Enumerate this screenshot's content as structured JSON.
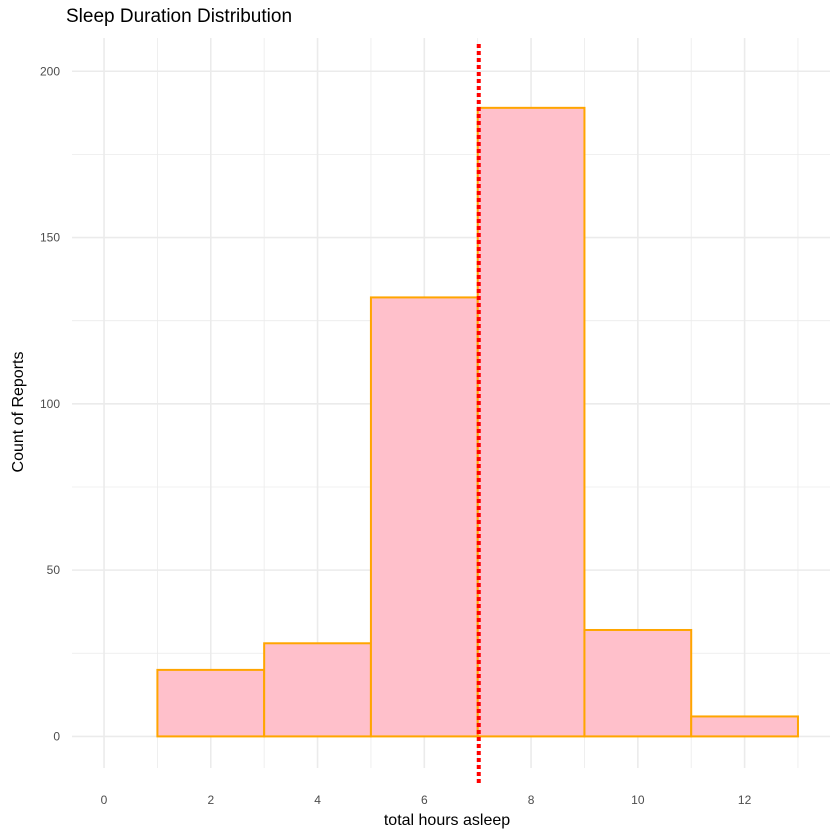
{
  "chart_data": {
    "type": "bar",
    "title": "Sleep Duration Distribution",
    "xlabel": "total hours asleep",
    "ylabel": "Count of Reports",
    "bins": [
      {
        "x_start": 1,
        "x_end": 3,
        "count": 20
      },
      {
        "x_start": 3,
        "x_end": 5,
        "count": 28
      },
      {
        "x_start": 5,
        "x_end": 7,
        "count": 132
      },
      {
        "x_start": 7,
        "x_end": 9,
        "count": 189
      },
      {
        "x_start": 9,
        "x_end": 11,
        "count": 32
      },
      {
        "x_start": 11,
        "x_end": 13,
        "count": 6
      }
    ],
    "reference_line": {
      "x": 7.02,
      "style": "dotted",
      "color": "#ff0000"
    },
    "xlim": [
      -0.6,
      13.6
    ],
    "ylim": [
      -9.5,
      210
    ],
    "x_ticks": [
      0,
      2,
      4,
      6,
      8,
      10,
      12
    ],
    "y_ticks": [
      0,
      50,
      100,
      150,
      200
    ],
    "grid": true,
    "bar_fill": "#ffc0cb",
    "bar_outline": "#ffa500",
    "theme": "minimal"
  }
}
